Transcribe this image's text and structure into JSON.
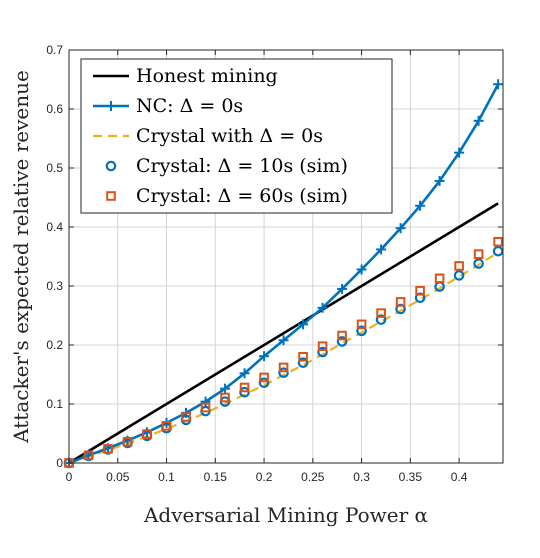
{
  "chart_data": {
    "type": "line",
    "xlabel": "Adversarial Mining Power α",
    "ylabel": "Attacker's expected relative revenue",
    "xlim": [
      0,
      0.445
    ],
    "ylim": [
      0,
      0.7
    ],
    "xticks": [
      0,
      0.05,
      0.1,
      0.15,
      0.2,
      0.25,
      0.3,
      0.35,
      0.4
    ],
    "xtick_labels": [
      "0",
      "0.05",
      "0.1",
      "0.15",
      "0.2",
      "0.25",
      "0.3",
      "0.35",
      "0.4"
    ],
    "yticks": [
      0,
      0.1,
      0.2,
      0.3,
      0.4,
      0.5,
      0.6,
      0.7
    ],
    "ytick_labels": [
      "0",
      "0.1",
      "0.2",
      "0.3",
      "0.4",
      "0.5",
      "0.6",
      "0.7"
    ],
    "grid": true,
    "legend_position": "top-left",
    "series": [
      {
        "name": "Honest mining",
        "color": "#000000",
        "style": "solid",
        "marker": "none",
        "x": [
          0,
          0.44
        ],
        "y": [
          0,
          0.44
        ]
      },
      {
        "name": "NC: Δ = 0s",
        "color": "#0072BD",
        "style": "solid",
        "marker": "plus",
        "x": [
          0,
          0.02,
          0.04,
          0.06,
          0.08,
          0.1,
          0.12,
          0.14,
          0.16,
          0.18,
          0.2,
          0.22,
          0.24,
          0.26,
          0.28,
          0.3,
          0.32,
          0.34,
          0.36,
          0.38,
          0.4,
          0.42,
          0.44
        ],
        "y": [
          0,
          0.013,
          0.025,
          0.038,
          0.052,
          0.068,
          0.085,
          0.104,
          0.126,
          0.152,
          0.181,
          0.208,
          0.235,
          0.263,
          0.295,
          0.328,
          0.362,
          0.398,
          0.436,
          0.478,
          0.526,
          0.58,
          0.642
        ]
      },
      {
        "name": "Crystal with Δ = 0s",
        "color": "#EDB120",
        "style": "dashed",
        "marker": "none",
        "x": [
          0,
          0.02,
          0.04,
          0.06,
          0.08,
          0.1,
          0.12,
          0.14,
          0.16,
          0.18,
          0.2,
          0.22,
          0.24,
          0.26,
          0.28,
          0.3,
          0.32,
          0.34,
          0.36,
          0.38,
          0.4,
          0.42,
          0.44
        ],
        "y": [
          0,
          0.011,
          0.022,
          0.033,
          0.045,
          0.058,
          0.071,
          0.085,
          0.1,
          0.116,
          0.132,
          0.149,
          0.166,
          0.184,
          0.203,
          0.221,
          0.24,
          0.258,
          0.277,
          0.296,
          0.316,
          0.336,
          0.357
        ]
      },
      {
        "name": "Crystal: Δ = 10s (sim)",
        "color": "#0072BD",
        "style": "none",
        "marker": "circle",
        "x": [
          0,
          0.02,
          0.04,
          0.06,
          0.08,
          0.1,
          0.12,
          0.14,
          0.16,
          0.18,
          0.2,
          0.22,
          0.24,
          0.26,
          0.28,
          0.3,
          0.32,
          0.34,
          0.36,
          0.38,
          0.4,
          0.42,
          0.44
        ],
        "y": [
          0,
          0.012,
          0.023,
          0.034,
          0.046,
          0.059,
          0.073,
          0.088,
          0.104,
          0.12,
          0.136,
          0.153,
          0.17,
          0.188,
          0.206,
          0.224,
          0.243,
          0.261,
          0.28,
          0.299,
          0.318,
          0.338,
          0.359
        ]
      },
      {
        "name": "Crystal: Δ = 60s (sim)",
        "color": "#D95319",
        "style": "none",
        "marker": "square",
        "x": [
          0,
          0.02,
          0.04,
          0.06,
          0.08,
          0.1,
          0.12,
          0.14,
          0.16,
          0.18,
          0.2,
          0.22,
          0.24,
          0.26,
          0.28,
          0.3,
          0.32,
          0.34,
          0.36,
          0.38,
          0.4,
          0.42,
          0.44
        ],
        "y": [
          0,
          0.013,
          0.024,
          0.036,
          0.049,
          0.063,
          0.078,
          0.094,
          0.111,
          0.128,
          0.145,
          0.162,
          0.18,
          0.198,
          0.216,
          0.235,
          0.254,
          0.273,
          0.292,
          0.313,
          0.334,
          0.354,
          0.375
        ]
      }
    ]
  }
}
